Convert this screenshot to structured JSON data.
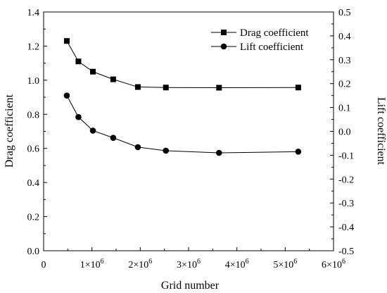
{
  "chart_data": {
    "type": "line",
    "xlabel": "Grid number",
    "ylabel": "Drag coefficient",
    "y2label": "Lift coefficient",
    "x_ticks": [
      {
        "value": 0,
        "base": "0",
        "exp": ""
      },
      {
        "value": 1000000,
        "base": "1×10",
        "exp": "6"
      },
      {
        "value": 2000000,
        "base": "2×10",
        "exp": "6"
      },
      {
        "value": 3000000,
        "base": "3×10",
        "exp": "6"
      },
      {
        "value": 4000000,
        "base": "4×10",
        "exp": "6"
      },
      {
        "value": 5000000,
        "base": "5×10",
        "exp": "6"
      },
      {
        "value": 6000000,
        "base": "6×10",
        "exp": "6"
      }
    ],
    "xlim": [
      0,
      6000000
    ],
    "ylim": [
      0,
      1.4
    ],
    "y2lim": [
      -0.5,
      0.5
    ],
    "y_ticks": [
      "0.0",
      "0.2",
      "0.4",
      "0.6",
      "0.8",
      "1.0",
      "1.2",
      "1.4"
    ],
    "y2_ticks": [
      "-0.5",
      "-0.4",
      "-0.3",
      "-0.2",
      "-0.1",
      "0.0",
      "0.1",
      "0.2",
      "0.3",
      "0.4",
      "0.5"
    ],
    "legend_position": "top-right",
    "x": [
      480000,
      720000,
      1020000,
      1440000,
      1950000,
      2530000,
      3630000,
      5270000
    ],
    "series": [
      {
        "name": "Drag coefficient",
        "axis": "left",
        "marker": "square",
        "values": [
          1.23,
          1.11,
          1.05,
          1.005,
          0.96,
          0.957,
          0.956,
          0.957
        ]
      },
      {
        "name": "Lift coefficient",
        "axis": "right",
        "marker": "circle",
        "values": [
          0.15,
          0.06,
          0.003,
          -0.027,
          -0.066,
          -0.081,
          -0.09,
          -0.085
        ]
      }
    ]
  }
}
